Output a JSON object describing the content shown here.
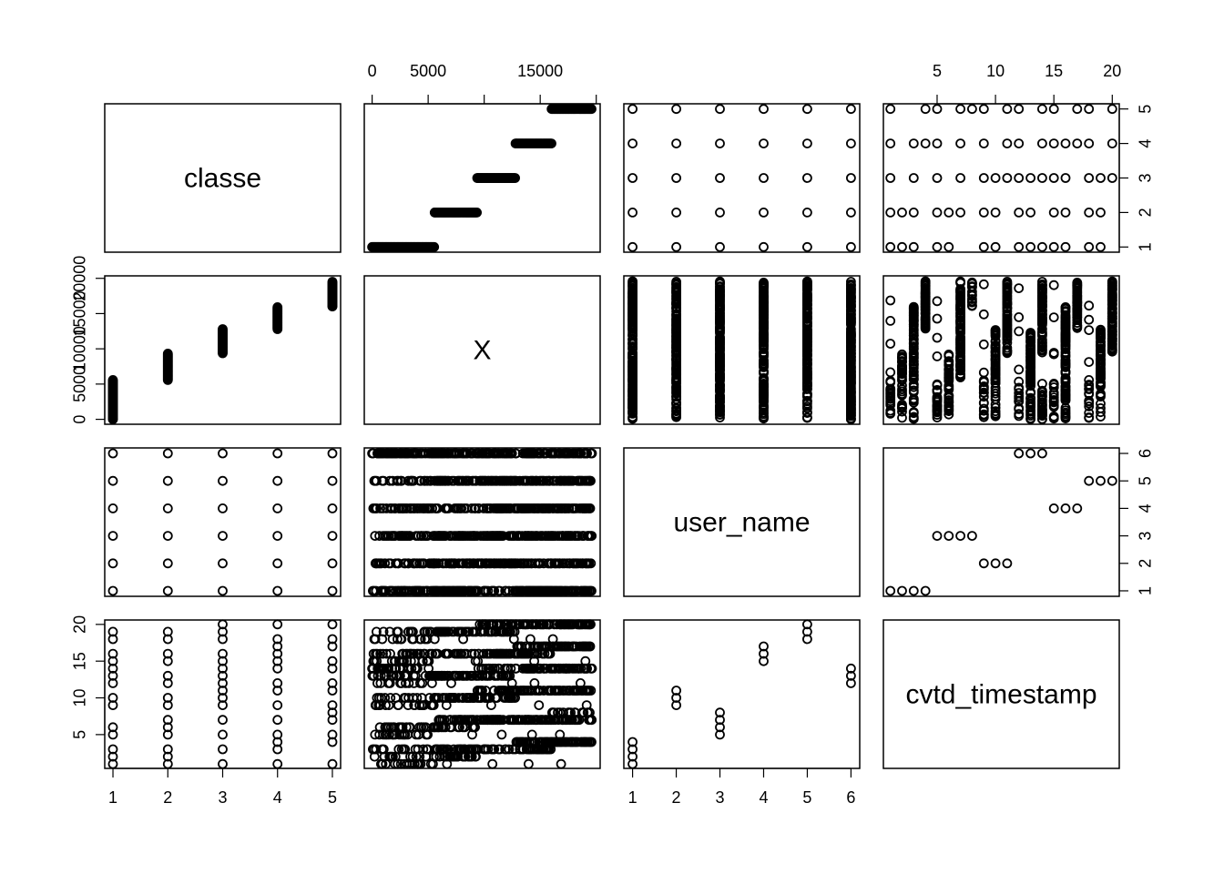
{
  "chart_data": {
    "type": "scatter",
    "variables": [
      "classe",
      "X",
      "user_name",
      "cvtd_timestamp"
    ],
    "axes": {
      "classe": {
        "range": [
          0.85,
          5.15
        ],
        "ticks": [
          1,
          2,
          3,
          4,
          5
        ],
        "tick_labels": [
          "1",
          "2",
          "3",
          "4",
          "5"
        ]
      },
      "X": {
        "range": [
          -700,
          20350
        ],
        "ticks": [
          0,
          5000,
          10000,
          15000,
          20000
        ],
        "tick_labels": [
          "0",
          "5000",
          "10000",
          "15000",
          "20000"
        ],
        "labeled_ticks_top": [
          "0",
          "5000",
          "15000"
        ]
      },
      "user_name": {
        "range": [
          0.8,
          6.2
        ],
        "ticks": [
          1,
          2,
          3,
          4,
          5,
          6
        ],
        "tick_labels": [
          "1",
          "2",
          "3",
          "4",
          "5",
          "6"
        ]
      },
      "cvtd_timestamp": {
        "range": [
          0.4,
          20.6
        ],
        "ticks": [
          5,
          10,
          15,
          20
        ],
        "tick_labels": [
          "5",
          "10",
          "15",
          "20"
        ]
      }
    },
    "grid": false,
    "legend": "none",
    "point_color": "#000000",
    "classe_X_ranges": [
      [
        1,
        0,
        5580
      ],
      [
        2,
        5581,
        9377
      ],
      [
        3,
        9378,
        12799
      ],
      [
        4,
        12800,
        16015
      ],
      [
        5,
        16016,
        19622
      ]
    ],
    "user_name_by_classe": [
      [
        1,
        1
      ],
      [
        1,
        2
      ],
      [
        1,
        3
      ],
      [
        1,
        4
      ],
      [
        1,
        5
      ],
      [
        1,
        6
      ],
      [
        2,
        1
      ],
      [
        2,
        2
      ],
      [
        2,
        3
      ],
      [
        2,
        4
      ],
      [
        2,
        5
      ],
      [
        2,
        6
      ],
      [
        3,
        1
      ],
      [
        3,
        2
      ],
      [
        3,
        3
      ],
      [
        3,
        4
      ],
      [
        3,
        5
      ],
      [
        3,
        6
      ],
      [
        4,
        1
      ],
      [
        4,
        2
      ],
      [
        4,
        3
      ],
      [
        4,
        4
      ],
      [
        4,
        5
      ],
      [
        4,
        6
      ],
      [
        5,
        1
      ],
      [
        5,
        2
      ],
      [
        5,
        3
      ],
      [
        5,
        4
      ],
      [
        5,
        5
      ],
      [
        5,
        6
      ]
    ],
    "user_timestamps": [
      [
        1,
        1
      ],
      [
        1,
        2
      ],
      [
        1,
        3
      ],
      [
        1,
        4
      ],
      [
        2,
        9
      ],
      [
        2,
        10
      ],
      [
        2,
        11
      ],
      [
        3,
        5
      ],
      [
        3,
        6
      ],
      [
        3,
        7
      ],
      [
        3,
        8
      ],
      [
        4,
        15
      ],
      [
        4,
        16
      ],
      [
        4,
        17
      ],
      [
        5,
        18
      ],
      [
        5,
        19
      ],
      [
        5,
        20
      ],
      [
        6,
        12
      ],
      [
        6,
        13
      ],
      [
        6,
        14
      ]
    ],
    "classe_timestamps": [
      [
        1,
        [
          1,
          2,
          3,
          5,
          6,
          9,
          10,
          12,
          13,
          14,
          15,
          16,
          18,
          19
        ]
      ],
      [
        2,
        [
          2,
          3,
          6,
          7,
          10,
          13,
          16,
          19
        ]
      ],
      [
        3,
        [
          3,
          7,
          10,
          11,
          13,
          14,
          16,
          19,
          20
        ]
      ],
      [
        4,
        [
          3,
          4,
          7,
          11,
          14,
          16,
          17,
          20
        ]
      ],
      [
        5,
        [
          4,
          7,
          8,
          11,
          14,
          17,
          20
        ]
      ]
    ]
  }
}
